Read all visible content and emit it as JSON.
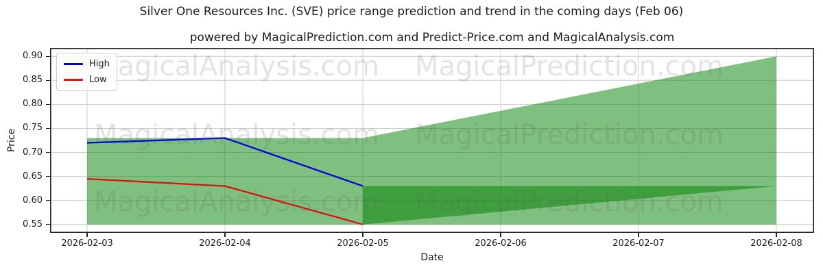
{
  "title": "Silver One Resources Inc. (SVE) price range prediction and trend in the coming days (Feb 06)",
  "subtitle": "powered by MagicalPrediction.com and Predict-Price.com and MagicalAnalysis.com",
  "legend": {
    "items": [
      {
        "label": "High",
        "color": "#0000dd"
      },
      {
        "label": "Low",
        "color": "#dd1111"
      }
    ]
  },
  "axes": {
    "xlabel": "Date",
    "ylabel": "Price"
  },
  "watermarks": {
    "texts": [
      "MagicalAnalysis.com",
      "MagicalPrediction.com"
    ]
  },
  "colors": {
    "band_green": "#008000",
    "grid": "#cccccc",
    "spine": "#222222"
  },
  "chart_data": {
    "type": "line",
    "title": "Silver One Resources Inc. (SVE) price range prediction and trend in the coming days (Feb 06)",
    "subtitle": "powered by MagicalPrediction.com and Predict-Price.com and MagicalAnalysis.com",
    "xlabel": "Date",
    "ylabel": "Price",
    "x": [
      "2026-02-03",
      "2026-02-04",
      "2026-02-05"
    ],
    "series": [
      {
        "name": "High",
        "color": "#0000dd",
        "values": [
          0.72,
          0.73,
          0.63
        ]
      },
      {
        "name": "Low",
        "color": "#dd1111",
        "values": [
          0.645,
          0.63,
          0.55
        ]
      }
    ],
    "bands": [
      {
        "name": "prediction-range",
        "color": "#008000",
        "alpha": 0.5,
        "x": [
          "2026-02-03",
          "2026-02-05",
          "2026-02-08"
        ],
        "top": [
          0.73,
          0.73,
          0.9
        ],
        "bottom": [
          0.55,
          0.55,
          0.55
        ]
      },
      {
        "name": "forecast-low-wedge",
        "color": "#008000",
        "alpha": 0.5,
        "x": [
          "2026-02-05",
          "2026-02-08"
        ],
        "top": [
          0.63,
          0.63
        ],
        "bottom": [
          0.55,
          0.63
        ]
      }
    ],
    "xticks": [
      "2026-02-03",
      "2026-02-04",
      "2026-02-05",
      "2026-02-06",
      "2026-02-07",
      "2026-02-08"
    ],
    "yticks": [
      0.55,
      0.6,
      0.65,
      0.7,
      0.75,
      0.8,
      0.85,
      0.9
    ],
    "ytick_labels": [
      "0.55",
      "0.60",
      "0.65",
      "0.70",
      "0.75",
      "0.80",
      "0.85",
      "0.90"
    ],
    "ylim": [
      0.5325,
      0.9175
    ],
    "grid": true,
    "legend_position": "upper left"
  }
}
